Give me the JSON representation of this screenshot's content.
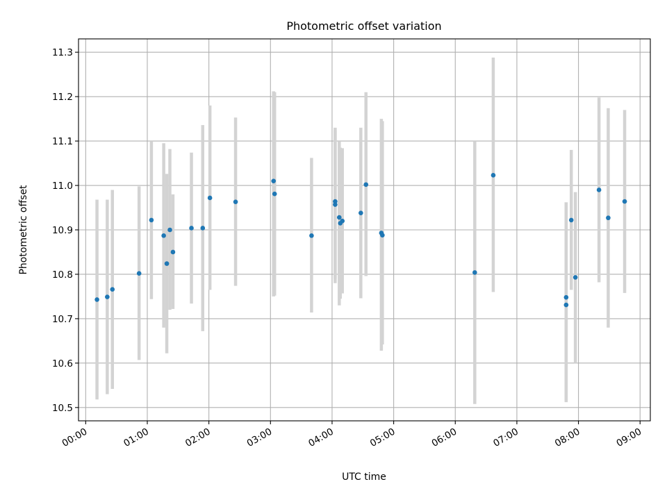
{
  "chart_data": {
    "type": "scatter",
    "title": "Photometric offset variation",
    "xlabel": "UTC time",
    "ylabel": "Photometric offset",
    "x_axis_kind": "time",
    "xlim": [
      "23:53",
      "09:10"
    ],
    "ylim": [
      10.47,
      11.33
    ],
    "x_ticks": [
      "00:00",
      "01:00",
      "02:00",
      "03:00",
      "04:00",
      "05:00",
      "06:00",
      "07:00",
      "08:00",
      "09:00"
    ],
    "y_ticks": [
      "10.5",
      "10.6",
      "10.7",
      "10.8",
      "10.9",
      "11.0",
      "11.1",
      "11.2",
      "11.3"
    ],
    "grid": true,
    "legend": "none",
    "colors": {
      "point": "#1f77b4",
      "errorbar": "#d3d3d3",
      "grid": "#b0b0b0"
    },
    "points": [
      {
        "t": "00:11",
        "y": 10.743,
        "ylo": 10.518,
        "yhi": 10.968
      },
      {
        "t": "00:21",
        "y": 10.749,
        "ylo": 10.53,
        "yhi": 10.968
      },
      {
        "t": "00:26",
        "y": 10.766,
        "ylo": 10.542,
        "yhi": 10.99
      },
      {
        "t": "00:52",
        "y": 10.802,
        "ylo": 10.607,
        "yhi": 10.998
      },
      {
        "t": "01:04",
        "y": 10.922,
        "ylo": 10.744,
        "yhi": 11.1
      },
      {
        "t": "01:16",
        "y": 10.887,
        "ylo": 10.68,
        "yhi": 11.095
      },
      {
        "t": "01:19",
        "y": 10.824,
        "ylo": 10.622,
        "yhi": 11.026
      },
      {
        "t": "01:22",
        "y": 10.9,
        "ylo": 10.72,
        "yhi": 11.082
      },
      {
        "t": "01:25",
        "y": 10.85,
        "ylo": 10.722,
        "yhi": 10.98
      },
      {
        "t": "01:43",
        "y": 10.904,
        "ylo": 10.734,
        "yhi": 11.074
      },
      {
        "t": "01:54",
        "y": 10.904,
        "ylo": 10.672,
        "yhi": 11.136
      },
      {
        "t": "02:01",
        "y": 10.972,
        "ylo": 10.765,
        "yhi": 11.18
      },
      {
        "t": "02:26",
        "y": 10.963,
        "ylo": 10.774,
        "yhi": 11.153
      },
      {
        "t": "03:03",
        "y": 11.01,
        "ylo": 10.75,
        "yhi": 11.212
      },
      {
        "t": "03:04",
        "y": 10.981,
        "ylo": 10.752,
        "yhi": 11.21
      },
      {
        "t": "03:40",
        "y": 10.887,
        "ylo": 10.714,
        "yhi": 11.062
      },
      {
        "t": "04:03",
        "y": 10.964,
        "ylo": 10.78,
        "yhi": 11.13
      },
      {
        "t": "04:03",
        "y": 10.957,
        "ylo": 10.79,
        "yhi": 11.124
      },
      {
        "t": "04:07",
        "y": 10.928,
        "ylo": 10.73,
        "yhi": 11.1
      },
      {
        "t": "04:08",
        "y": 10.915,
        "ylo": 10.745,
        "yhi": 11.085
      },
      {
        "t": "04:10",
        "y": 10.92,
        "ylo": 10.757,
        "yhi": 11.084
      },
      {
        "t": "04:28",
        "y": 10.938,
        "ylo": 10.746,
        "yhi": 11.13
      },
      {
        "t": "04:33",
        "y": 11.002,
        "ylo": 10.796,
        "yhi": 11.21
      },
      {
        "t": "04:48",
        "y": 10.893,
        "ylo": 10.628,
        "yhi": 11.15
      },
      {
        "t": "04:49",
        "y": 10.888,
        "ylo": 10.642,
        "yhi": 11.145
      },
      {
        "t": "06:19",
        "y": 10.804,
        "ylo": 10.508,
        "yhi": 11.1
      },
      {
        "t": "06:37",
        "y": 11.023,
        "ylo": 10.76,
        "yhi": 11.288
      },
      {
        "t": "07:48",
        "y": 10.748,
        "ylo": 10.512,
        "yhi": 10.962
      },
      {
        "t": "07:48",
        "y": 10.731,
        "ylo": 10.515,
        "yhi": 10.962
      },
      {
        "t": "07:53",
        "y": 10.922,
        "ylo": 10.765,
        "yhi": 11.08
      },
      {
        "t": "07:57",
        "y": 10.793,
        "ylo": 10.6,
        "yhi": 10.985
      },
      {
        "t": "08:20",
        "y": 10.99,
        "ylo": 10.782,
        "yhi": 11.198
      },
      {
        "t": "08:29",
        "y": 10.927,
        "ylo": 10.68,
        "yhi": 11.174
      },
      {
        "t": "08:45",
        "y": 10.964,
        "ylo": 10.758,
        "yhi": 11.17
      }
    ]
  }
}
